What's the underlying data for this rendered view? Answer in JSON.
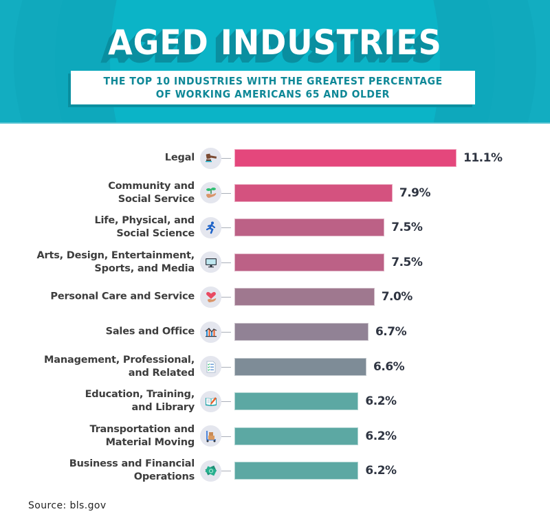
{
  "header": {
    "title": "AGED INDUSTRIES",
    "subtitle_line1": "THE TOP 10 INDUSTRIES WITH THE GREATEST PERCENTAGE",
    "subtitle_line2": "OF WORKING AMERICANS 65 AND OLDER"
  },
  "colors": {
    "header_bg": "#12adc1",
    "title_shadow": "#0a8fa0",
    "subtitle_text": "#0f8897"
  },
  "source": "Source: bls.gov",
  "chart_data": {
    "type": "bar",
    "orientation": "horizontal",
    "title": "AGED INDUSTRIES",
    "subtitle": "THE TOP 10 INDUSTRIES WITH THE GREATEST PERCENTAGE OF WORKING AMERICANS 65 AND OLDER",
    "xlabel": "",
    "ylabel": "",
    "unit": "%",
    "xlim": [
      0,
      11.1
    ],
    "grid": false,
    "legend": "none",
    "categories": [
      [
        "Legal"
      ],
      [
        "Community and",
        "Social Service"
      ],
      [
        "Life, Physical, and",
        "Social Science"
      ],
      [
        "Arts, Design, Entertainment,",
        "Sports, and Media"
      ],
      [
        "Personal Care and Service"
      ],
      [
        "Sales and Office"
      ],
      [
        "Management, Professional,",
        "and Related"
      ],
      [
        "Education, Training,",
        "and Library"
      ],
      [
        "Transportation and",
        "Material Moving"
      ],
      [
        "Business and Financial",
        "Operations"
      ]
    ],
    "values": [
      11.1,
      7.9,
      7.5,
      7.5,
      7.0,
      6.7,
      6.6,
      6.2,
      6.2,
      6.2
    ],
    "value_labels": [
      "11.1%",
      "7.9%",
      "7.5%",
      "7.5%",
      "7.0%",
      "6.7%",
      "6.6%",
      "6.2%",
      "6.2%",
      "6.2%"
    ],
    "bar_colors": [
      "#e4477c",
      "#d4527f",
      "#bc6186",
      "#bc6186",
      "#9f788f",
      "#918295",
      "#7e8c97",
      "#5ca8a3",
      "#5ca8a3",
      "#5ca8a3"
    ],
    "icons": [
      "gavel-icon",
      "hand-plant-icon",
      "running-person-icon",
      "monitor-icon",
      "hand-heart-icon",
      "bar-line-chart-icon",
      "checklist-icon",
      "book-pencil-icon",
      "hand-truck-boxes-icon",
      "money-bills-icon"
    ]
  }
}
